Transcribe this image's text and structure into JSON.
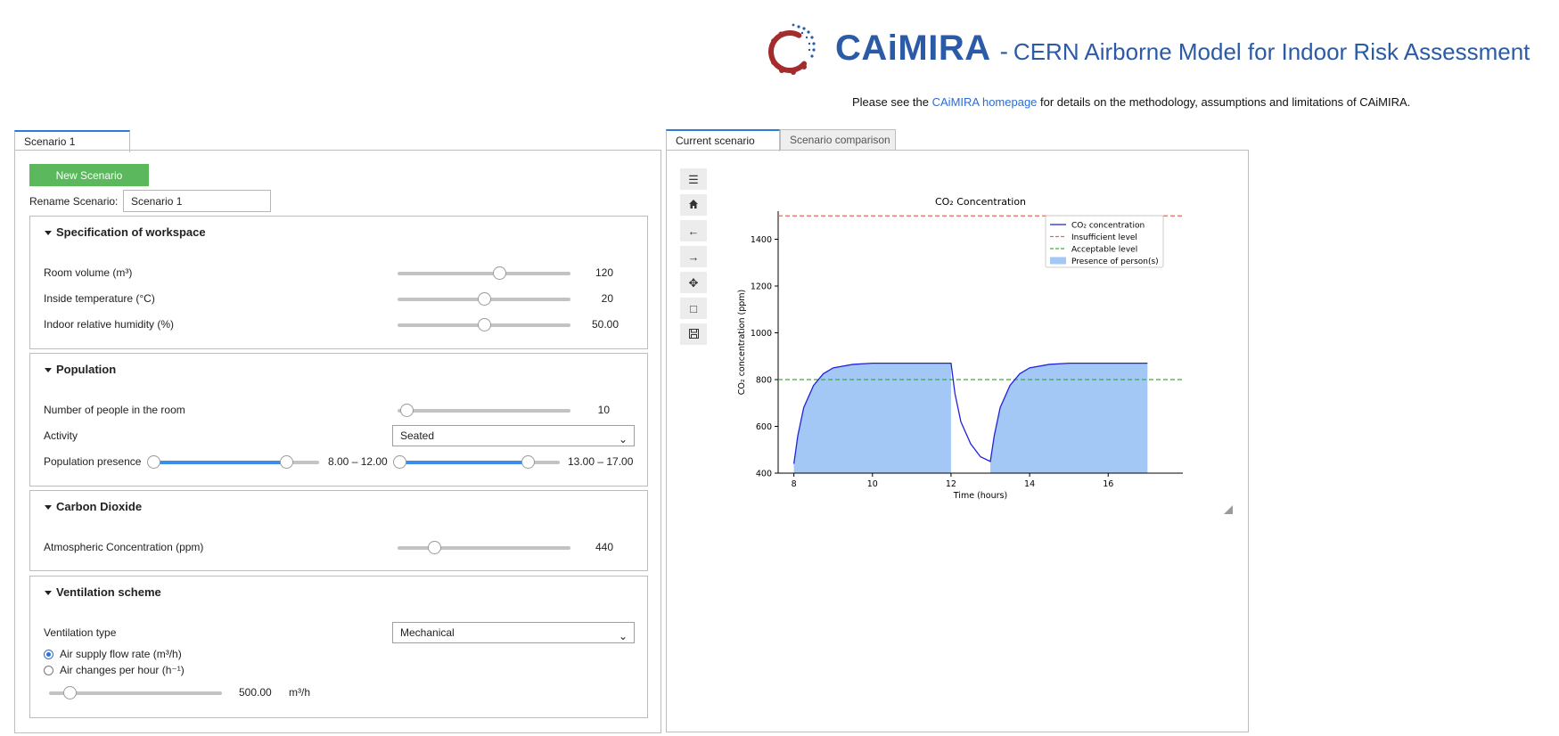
{
  "header": {
    "app_name": "CAiMIRA",
    "separator": "-",
    "full_name": "CERN Airborne Model for Indoor Risk Assessment",
    "note_prefix": "Please see the ",
    "note_link": "CAiMIRA homepage",
    "note_suffix": " for details on the methodology, assumptions and limitations of CAiMIRA.",
    "brand_color": "#2b5aa6",
    "logo_color": "#a52c2c"
  },
  "left": {
    "tab_label": "Scenario 1",
    "new_scenario_label": "New Scenario",
    "rename_label": "Rename Scenario:",
    "rename_value": "Scenario 1",
    "workspace": {
      "title": "Specification of workspace",
      "room_volume_label": "Room volume (m³)",
      "room_volume_value": "120",
      "room_volume_level": 0.59,
      "temperature_label": "Inside temperature (°C)",
      "temperature_value": "20",
      "temperature_level": 0.5,
      "humidity_label": "Indoor relative humidity (%)",
      "humidity_value": "50.00",
      "humidity_level": 0.5
    },
    "population": {
      "title": "Population",
      "people_label": "Number of people in the room",
      "people_value": "10",
      "people_level": 0.05,
      "activity_label": "Activity",
      "activity_value": "Seated",
      "presence_label": "Population presence",
      "presence_1_value": "8.00 – 12.00",
      "presence_1_range": [
        0.0,
        0.8
      ],
      "presence_2_value": "13.00 – 17.00",
      "presence_2_range": [
        0.0,
        0.8
      ]
    },
    "co2": {
      "title": "Carbon Dioxide",
      "atmos_label": "Atmospheric Concentration (ppm)",
      "atmos_value": "440",
      "atmos_level": 0.21
    },
    "ventilation": {
      "title": "Ventilation scheme",
      "type_label": "Ventilation type",
      "type_value": "Mechanical",
      "radio_1": "Air supply flow rate (m³/h)",
      "radio_2": "Air changes per hour (h⁻¹)",
      "flow_value": "500.00",
      "flow_unit": "m³/h",
      "flow_level": 0.12
    }
  },
  "right": {
    "tab_current": "Current scenario",
    "tab_comparison": "Scenario comparison",
    "toolbar_icons": [
      "menu-icon",
      "home-icon",
      "back-arrow-icon",
      "forward-arrow-icon",
      "pan-icon",
      "zoom-rect-icon",
      "save-icon"
    ]
  },
  "chart_data": {
    "type": "line",
    "title": "CO₂ Concentration",
    "xlabel": "Time (hours)",
    "ylabel": "CO₂ concentration (ppm)",
    "xlim": [
      7.6,
      17.9
    ],
    "ylim": [
      400,
      1520
    ],
    "xticks": [
      8,
      10,
      12,
      14,
      16
    ],
    "yticks": [
      400,
      600,
      800,
      1000,
      1200,
      1400
    ],
    "grid": false,
    "legend_placement": "top-right",
    "series": [
      {
        "name": "CO₂ concentration",
        "color": "#2222dd",
        "x": [
          8.0,
          8.1,
          8.25,
          8.5,
          8.75,
          9.0,
          9.5,
          10.0,
          11.0,
          12.0,
          12.1,
          12.25,
          12.5,
          12.75,
          13.0,
          13.1,
          13.25,
          13.5,
          13.75,
          14.0,
          14.5,
          15.0,
          16.0,
          17.0
        ],
        "y": [
          440,
          560,
          680,
          775,
          825,
          850,
          865,
          870,
          870,
          870,
          740,
          620,
          525,
          470,
          450,
          560,
          680,
          775,
          825,
          850,
          865,
          870,
          870,
          870
        ]
      },
      {
        "name": "Insufficient level",
        "color": "#e8695a",
        "value": 1500
      },
      {
        "name": "Acceptable level",
        "color": "#36b336",
        "value": 800
      },
      {
        "name": "Presence of person(s)",
        "color": "#a4c8f5",
        "intervals": [
          [
            8.0,
            12.0
          ],
          [
            13.0,
            17.0
          ]
        ]
      }
    ]
  }
}
